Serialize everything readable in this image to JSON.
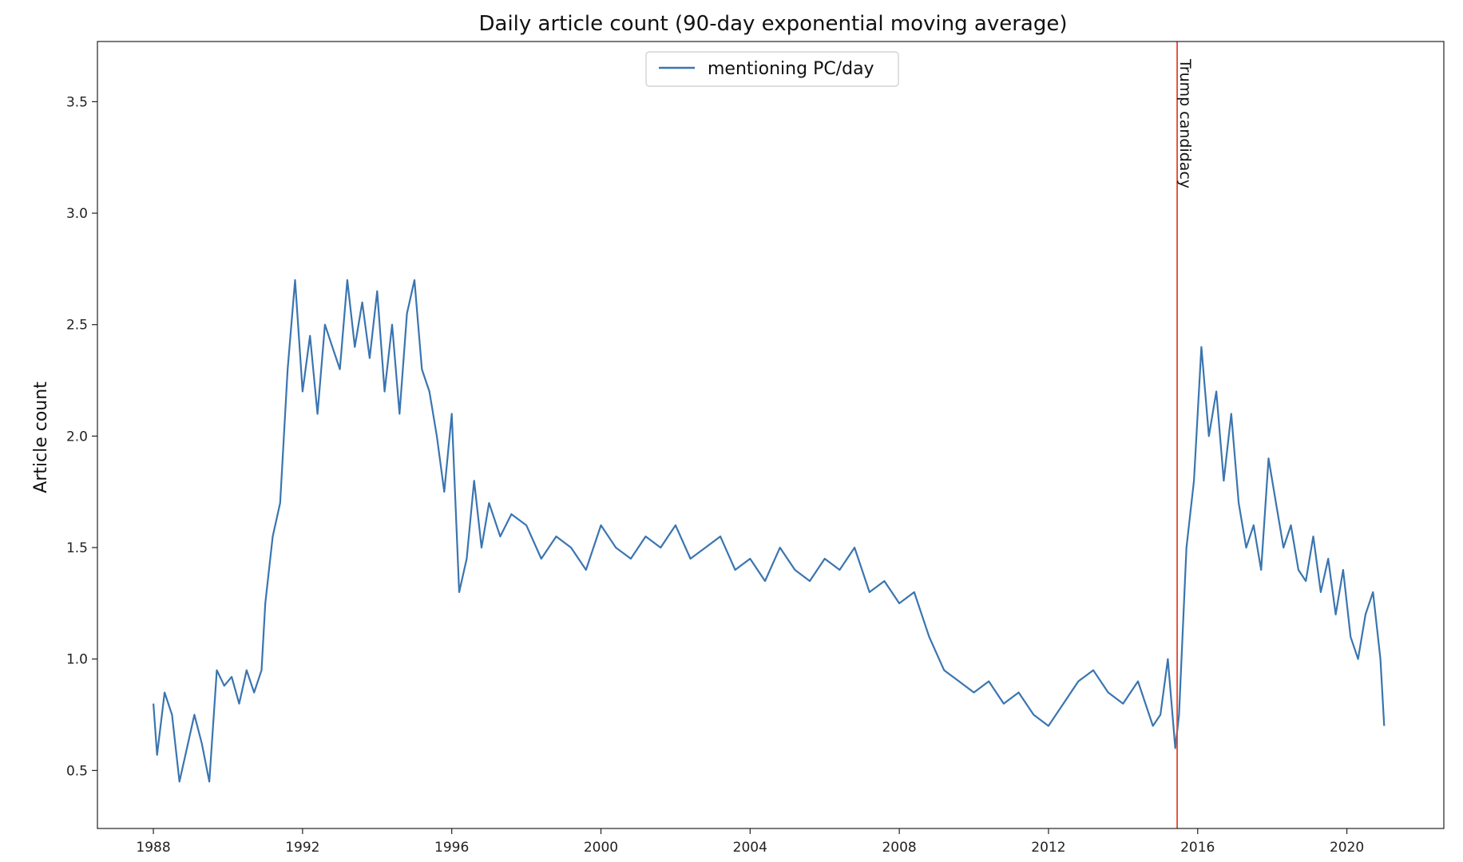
{
  "chart_data": {
    "type": "line",
    "title": "Daily article count (90-day exponential moving average)",
    "xlabel": "",
    "ylabel": "Article count",
    "xlim": [
      1986.5,
      2022.6
    ],
    "ylim": [
      0.24,
      3.77
    ],
    "grid": false,
    "legend_position": "top-center",
    "x_ticks": [
      1988,
      1992,
      1996,
      2000,
      2004,
      2008,
      2012,
      2016,
      2020
    ],
    "x_tick_labels": [
      "1988",
      "1992",
      "1996",
      "2000",
      "2004",
      "2008",
      "2012",
      "2016",
      "2020"
    ],
    "y_ticks": [
      0.5,
      1.0,
      1.5,
      2.0,
      2.5,
      3.0,
      3.5
    ],
    "y_tick_labels": [
      "0.5",
      "1.0",
      "1.5",
      "2.0",
      "2.5",
      "3.0",
      "3.5"
    ],
    "series": [
      {
        "name": "mentioning PC/day",
        "color": "#3a75b0",
        "x": [
          1988.0,
          1988.1,
          1988.3,
          1988.5,
          1988.7,
          1988.9,
          1989.1,
          1989.3,
          1989.5,
          1989.7,
          1989.9,
          1990.1,
          1990.3,
          1990.5,
          1990.7,
          1990.9,
          1991.0,
          1991.2,
          1991.4,
          1991.6,
          1991.8,
          1992.0,
          1992.2,
          1992.4,
          1992.6,
          1992.8,
          1993.0,
          1993.2,
          1993.4,
          1993.6,
          1993.8,
          1994.0,
          1994.2,
          1994.4,
          1994.6,
          1994.8,
          1995.0,
          1995.2,
          1995.4,
          1995.6,
          1995.8,
          1996.0,
          1996.2,
          1996.4,
          1996.6,
          1996.8,
          1997.0,
          1997.3,
          1997.6,
          1998.0,
          1998.4,
          1998.8,
          1999.2,
          1999.6,
          2000.0,
          2000.4,
          2000.8,
          2001.2,
          2001.6,
          2002.0,
          2002.4,
          2002.8,
          2003.2,
          2003.6,
          2004.0,
          2004.4,
          2004.8,
          2005.2,
          2005.6,
          2006.0,
          2006.4,
          2006.8,
          2007.2,
          2007.6,
          2008.0,
          2008.4,
          2008.8,
          2009.2,
          2009.6,
          2010.0,
          2010.4,
          2010.8,
          2011.2,
          2011.6,
          2012.0,
          2012.4,
          2012.8,
          2013.2,
          2013.6,
          2014.0,
          2014.4,
          2014.8,
          2015.0,
          2015.2,
          2015.4,
          2015.5,
          2015.7,
          2015.9,
          2016.1,
          2016.3,
          2016.5,
          2016.7,
          2016.9,
          2017.1,
          2017.3,
          2017.5,
          2017.7,
          2017.9,
          2018.1,
          2018.3,
          2018.5,
          2018.7,
          2018.9,
          2019.1,
          2019.3,
          2019.5,
          2019.7,
          2019.9,
          2020.1,
          2020.3,
          2020.5,
          2020.7,
          2020.9,
          2021.0
        ],
        "values": [
          0.8,
          0.57,
          0.85,
          0.75,
          0.45,
          0.6,
          0.75,
          0.62,
          0.45,
          0.95,
          0.88,
          0.92,
          0.8,
          0.95,
          0.85,
          0.95,
          1.25,
          1.55,
          1.7,
          2.3,
          2.7,
          2.2,
          2.45,
          2.1,
          2.5,
          2.4,
          2.3,
          2.7,
          2.4,
          2.6,
          2.35,
          2.65,
          2.2,
          2.5,
          2.1,
          2.55,
          2.7,
          2.3,
          2.2,
          2.0,
          1.75,
          2.1,
          1.3,
          1.45,
          1.8,
          1.5,
          1.7,
          1.55,
          1.65,
          1.6,
          1.45,
          1.55,
          1.5,
          1.4,
          1.6,
          1.5,
          1.45,
          1.55,
          1.5,
          1.6,
          1.45,
          1.5,
          1.55,
          1.4,
          1.45,
          1.35,
          1.5,
          1.4,
          1.35,
          1.45,
          1.4,
          1.5,
          1.3,
          1.35,
          1.25,
          1.3,
          1.1,
          0.95,
          0.9,
          0.85,
          0.9,
          0.8,
          0.85,
          0.75,
          0.7,
          0.8,
          0.9,
          0.95,
          0.85,
          0.8,
          0.9,
          0.7,
          0.75,
          1.0,
          0.6,
          0.75,
          1.5,
          1.8,
          2.4,
          2.0,
          2.2,
          1.8,
          2.1,
          1.7,
          1.5,
          1.6,
          1.4,
          1.9,
          1.7,
          1.5,
          1.6,
          1.4,
          1.35,
          1.55,
          1.3,
          1.45,
          1.2,
          1.4,
          1.1,
          1.0,
          1.2,
          1.3,
          1.0,
          0.7
        ]
      }
    ],
    "annotations": [
      {
        "type": "vline",
        "x": 2015.45,
        "color": "#e8442b",
        "label": "Trump candidacy"
      }
    ]
  }
}
